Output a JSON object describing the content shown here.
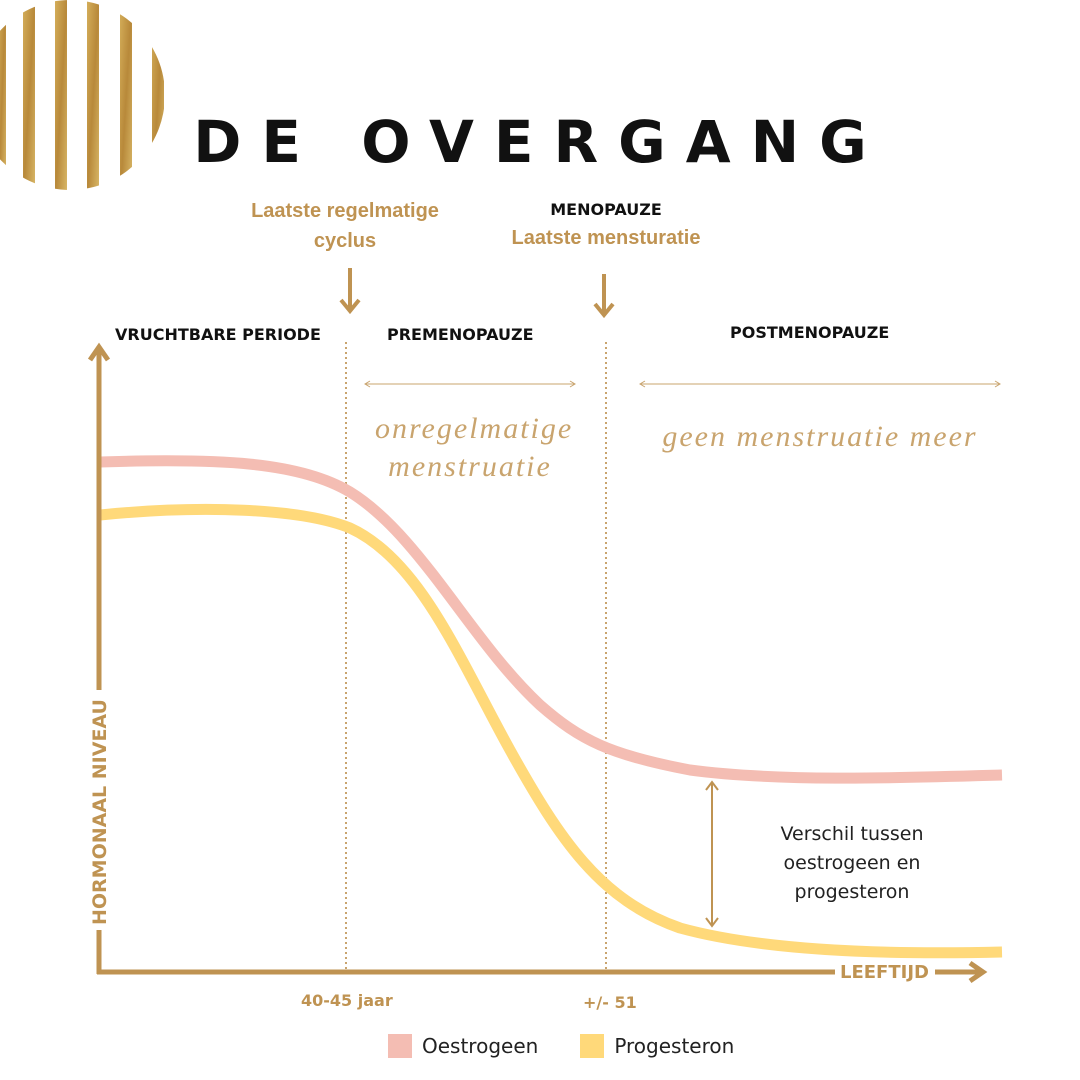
{
  "title": "DE OVERGANG",
  "annotations": {
    "last_cycle": "Laatste regelmatige cyclus",
    "menopause_label": "MENOPAUZE",
    "menopause_sub": "Laatste mensturatie"
  },
  "phases": [
    "VRUCHTBARE PERIODE",
    "PREMENOPAUZE",
    "POSTMENOPAUZE"
  ],
  "handwritten": {
    "premenopause": "onregelmatige menstruatie",
    "postmenopause": "geen menstruatie meer"
  },
  "axes": {
    "y_label": "HORMONAAL NIVEAU",
    "x_label": "LEEFTIJD",
    "x_ticks": [
      "40-45 jaar",
      "+/- 51"
    ]
  },
  "difference_note": "Verschil tussen oestrogeen en progesteron",
  "legend": [
    {
      "label": "Oestrogeen",
      "color": "#F4BDB3"
    },
    {
      "label": "Progesteron",
      "color": "#FFD97A"
    }
  ],
  "colors": {
    "accent": "#BF9352",
    "oestrogeen": "#F4BDB3",
    "progesteron": "#FFD97A"
  }
}
